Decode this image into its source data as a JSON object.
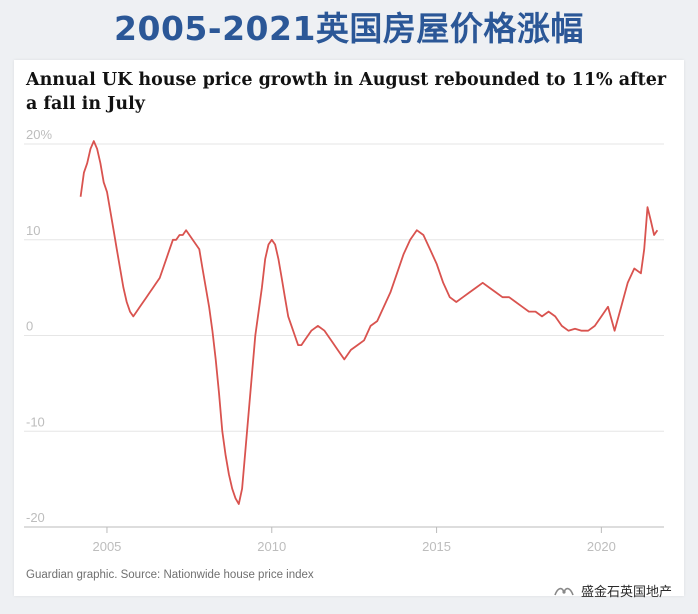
{
  "slide_title": "2005-2021英国房屋价格涨幅",
  "watermark": "盛金石英国地产",
  "chart_data": {
    "type": "line",
    "title": "Annual UK house price growth in August rebounded to 11% after a fall in July",
    "source": "Guardian graphic. Source: Nationwide house price index",
    "ylim": [
      -20,
      20
    ],
    "xlim": [
      2004.0,
      2021.9
    ],
    "yticks": [
      20,
      10,
      0,
      -10,
      -20
    ],
    "ytick_labels": [
      "20%",
      "10",
      "0",
      "-10",
      "-20"
    ],
    "xticks": [
      2005,
      2010,
      2015,
      2020
    ],
    "xtick_labels": [
      "2005",
      "2010",
      "2015",
      "2020"
    ],
    "grid": true,
    "colors": {
      "line": "#d9534f",
      "grid": "#e6e6e6",
      "axis": "#bbbbbb"
    },
    "series": [
      {
        "x": [
          2004.2,
          2004.3,
          2004.4,
          2004.5,
          2004.6,
          2004.7,
          2004.8,
          2004.9,
          2005.0,
          2005.1,
          2005.2,
          2005.3,
          2005.4,
          2005.5,
          2005.6,
          2005.7,
          2005.8,
          2005.9,
          2006.0,
          2006.1,
          2006.2,
          2006.3,
          2006.4,
          2006.5,
          2006.6,
          2006.7,
          2006.8,
          2006.9,
          2007.0,
          2007.1,
          2007.2,
          2007.3,
          2007.4,
          2007.5,
          2007.6,
          2007.7,
          2007.8,
          2007.9,
          2008.0,
          2008.1,
          2008.2,
          2008.3,
          2008.4,
          2008.5,
          2008.6,
          2008.7,
          2008.8,
          2008.9,
          2009.0,
          2009.1,
          2009.2,
          2009.3,
          2009.4,
          2009.5,
          2009.6,
          2009.7,
          2009.8,
          2009.9,
          2010.0,
          2010.1,
          2010.2,
          2010.3,
          2010.4,
          2010.5,
          2010.6,
          2010.7,
          2010.8,
          2010.9,
          2011.0,
          2011.2,
          2011.4,
          2011.6,
          2011.8,
          2012.0,
          2012.2,
          2012.4,
          2012.6,
          2012.8,
          2013.0,
          2013.2,
          2013.4,
          2013.6,
          2013.8,
          2014.0,
          2014.2,
          2014.4,
          2014.6,
          2014.8,
          2015.0,
          2015.2,
          2015.4,
          2015.6,
          2015.8,
          2016.0,
          2016.2,
          2016.4,
          2016.6,
          2016.8,
          2017.0,
          2017.2,
          2017.4,
          2017.6,
          2017.8,
          2018.0,
          2018.2,
          2018.4,
          2018.6,
          2018.8,
          2019.0,
          2019.2,
          2019.4,
          2019.6,
          2019.8,
          2020.0,
          2020.2,
          2020.4,
          2020.6,
          2020.8,
          2021.0,
          2021.2,
          2021.3,
          2021.4,
          2021.5,
          2021.6,
          2021.7
        ],
        "y": [
          14.5,
          17.0,
          18.0,
          19.5,
          20.3,
          19.5,
          18.0,
          16.0,
          15.0,
          13.0,
          11.0,
          9.0,
          7.0,
          5.0,
          3.5,
          2.5,
          2.0,
          2.5,
          3.0,
          3.5,
          4.0,
          4.5,
          5.0,
          5.5,
          6.0,
          7.0,
          8.0,
          9.0,
          10.0,
          10.0,
          10.5,
          10.5,
          11.0,
          10.5,
          10.0,
          9.5,
          9.0,
          7.0,
          5.0,
          3.0,
          0.5,
          -2.5,
          -6.0,
          -10.0,
          -12.5,
          -14.5,
          -16.0,
          -17.0,
          -17.6,
          -16.0,
          -12.0,
          -8.0,
          -4.0,
          0.0,
          2.5,
          5.0,
          8.0,
          9.5,
          10.0,
          9.5,
          8.0,
          6.0,
          4.0,
          2.0,
          1.0,
          0.0,
          -1.0,
          -1.0,
          -0.5,
          0.5,
          1.0,
          0.5,
          -0.5,
          -1.5,
          -2.5,
          -1.5,
          -1.0,
          -0.5,
          1.0,
          1.5,
          3.0,
          4.5,
          6.5,
          8.5,
          10.0,
          11.0,
          10.5,
          9.0,
          7.5,
          5.5,
          4.0,
          3.5,
          4.0,
          4.5,
          5.0,
          5.5,
          5.0,
          4.5,
          4.0,
          4.0,
          3.5,
          3.0,
          2.5,
          2.5,
          2.0,
          2.5,
          2.0,
          1.0,
          0.5,
          0.7,
          0.5,
          0.5,
          1.0,
          2.0,
          3.0,
          0.5,
          3.0,
          5.5,
          7.0,
          6.5,
          9.0,
          13.4,
          12.0,
          10.5,
          11.0
        ]
      }
    ]
  }
}
